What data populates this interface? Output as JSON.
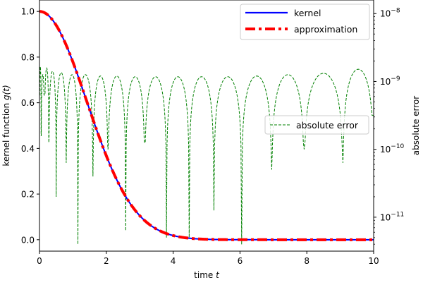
{
  "chart_data": {
    "type": "line",
    "xlabel": "time",
    "xlabel_var": "t",
    "ylabel": "kernel function",
    "ylabel_var": "g(t)",
    "y2label": "absolute error",
    "xlim": [
      0,
      10
    ],
    "ylim": [
      -0.05,
      1.05
    ],
    "y2lim_log10": [
      -11.5,
      -7.8
    ],
    "y2scale": "log",
    "grid": false,
    "xticks": [
      0,
      2,
      4,
      6,
      8,
      10
    ],
    "yticks": [
      0.0,
      0.2,
      0.4,
      0.6,
      0.8,
      1.0
    ],
    "y2ticks": [
      {
        "value": -11,
        "base": "10",
        "exp": "−11"
      },
      {
        "value": -10,
        "base": "10",
        "exp": "−10"
      },
      {
        "value": -9,
        "base": "10",
        "exp": "−9"
      },
      {
        "value": -8,
        "base": "10",
        "exp": "−8"
      }
    ],
    "legend_left": {
      "placement": "top-right",
      "entries": [
        "kernel",
        "approximation"
      ]
    },
    "legend_right": {
      "placement": "center-right",
      "entries": [
        "absolute error"
      ]
    },
    "series": [
      {
        "name": "kernel",
        "axis": "left",
        "color": "#0000ff",
        "style": "solid",
        "x": [
          0,
          0.25,
          0.5,
          0.75,
          1.0,
          1.25,
          1.5,
          1.75,
          2.0,
          2.25,
          2.5,
          2.75,
          3.0,
          3.25,
          3.5,
          3.75,
          4.0,
          4.5,
          5.0,
          5.5,
          6.0,
          7.0,
          8.0,
          9.0,
          10.0
        ],
        "y": [
          1.0,
          0.985,
          0.94,
          0.87,
          0.78,
          0.68,
          0.57,
          0.46,
          0.37,
          0.28,
          0.21,
          0.15,
          0.105,
          0.07,
          0.045,
          0.028,
          0.017,
          0.006,
          0.002,
          0.0008,
          0.0003,
          0.0,
          0.0,
          0.0,
          0.0
        ]
      },
      {
        "name": "approximation",
        "axis": "left",
        "color": "#ff0000",
        "style": "dashdot",
        "x": [
          0,
          0.25,
          0.5,
          0.75,
          1.0,
          1.25,
          1.5,
          1.75,
          2.0,
          2.25,
          2.5,
          2.75,
          3.0,
          3.25,
          3.5,
          3.75,
          4.0,
          4.5,
          5.0,
          5.5,
          6.0,
          7.0,
          8.0,
          9.0,
          10.0
        ],
        "y": [
          1.0,
          0.985,
          0.94,
          0.87,
          0.78,
          0.68,
          0.57,
          0.46,
          0.37,
          0.28,
          0.21,
          0.15,
          0.105,
          0.07,
          0.045,
          0.028,
          0.017,
          0.006,
          0.002,
          0.0008,
          0.0003,
          0.0,
          0.0,
          0.0,
          0.0
        ]
      },
      {
        "name": "absolute error",
        "axis": "right",
        "color": "#008000",
        "style": "dashed",
        "peak_log10": -9.0,
        "peaks_log10": [
          -8.78,
          -8.9,
          -8.8,
          -8.85,
          -8.87,
          -8.9,
          -8.9,
          -8.92,
          -8.92,
          -8.93,
          -8.93,
          -8.93,
          -8.93,
          -8.93,
          -8.92,
          -8.9,
          -8.88,
          -8.82
        ],
        "zero_crossings_t": [
          0.05,
          0.15,
          0.28,
          0.5,
          0.8,
          1.15,
          1.6,
          2.05,
          2.58,
          3.15,
          3.8,
          4.48,
          5.22,
          6.05,
          6.95,
          7.92,
          9.08
        ],
        "dip_log10": [
          -9.8,
          -9.2,
          -9.9,
          -10.7,
          -10.2,
          -11.4,
          -10.4,
          -10.0,
          -11.2,
          -9.9,
          -11.3,
          -11.3,
          -10.9,
          -11.4,
          -10.3,
          -10.0,
          -10.2
        ]
      }
    ]
  }
}
